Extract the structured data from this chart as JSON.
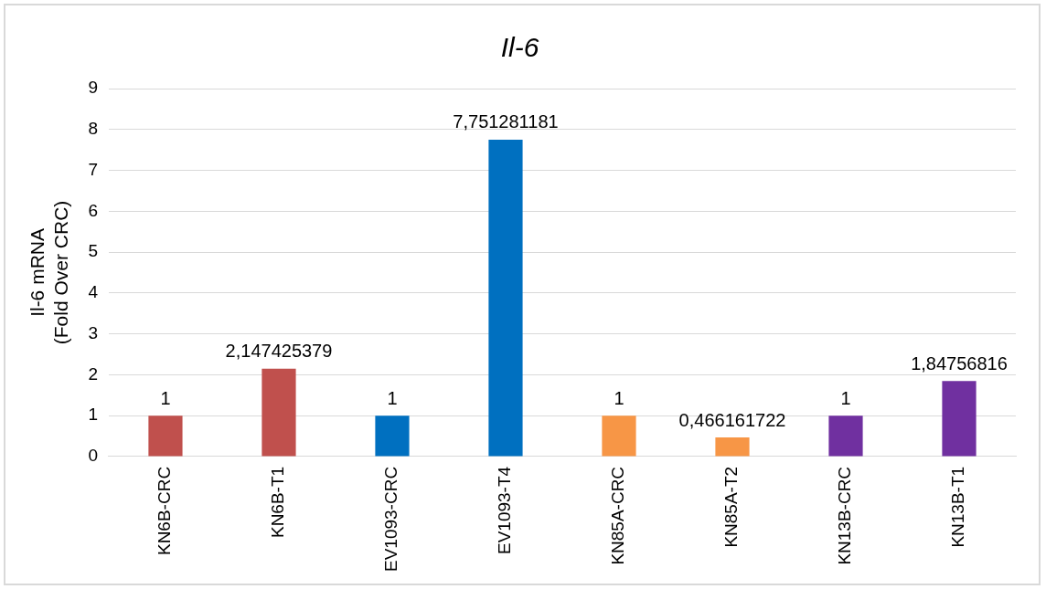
{
  "chart_data": {
    "type": "bar",
    "title": "Il-6",
    "ylabel": "Il-6 mRNA\n(Fold Over CRC)",
    "categories": [
      "KN6B-CRC",
      "KN6B-T1",
      "EV1093-CRC",
      "EV1093-T4",
      "KN85A-CRC",
      "KN85A-T2",
      "KN13B-CRC",
      "KN13B-T1"
    ],
    "values": [
      1,
      2.147425379,
      1,
      7.751281181,
      1,
      0.466161722,
      1,
      1.84756816
    ],
    "value_labels": [
      "1",
      "2,147425379",
      "1",
      "7,751281181",
      "1",
      "0,466161722",
      "1",
      "1,84756816"
    ],
    "colors": [
      "#c0504d",
      "#c0504d",
      "#0070c0",
      "#0070c0",
      "#f79646",
      "#f79646",
      "#7030a0",
      "#7030a0"
    ],
    "ylim": [
      0,
      9
    ],
    "yticks": [
      0,
      1,
      2,
      3,
      4,
      5,
      6,
      7,
      8,
      9
    ],
    "grid": "y",
    "legend": false
  }
}
